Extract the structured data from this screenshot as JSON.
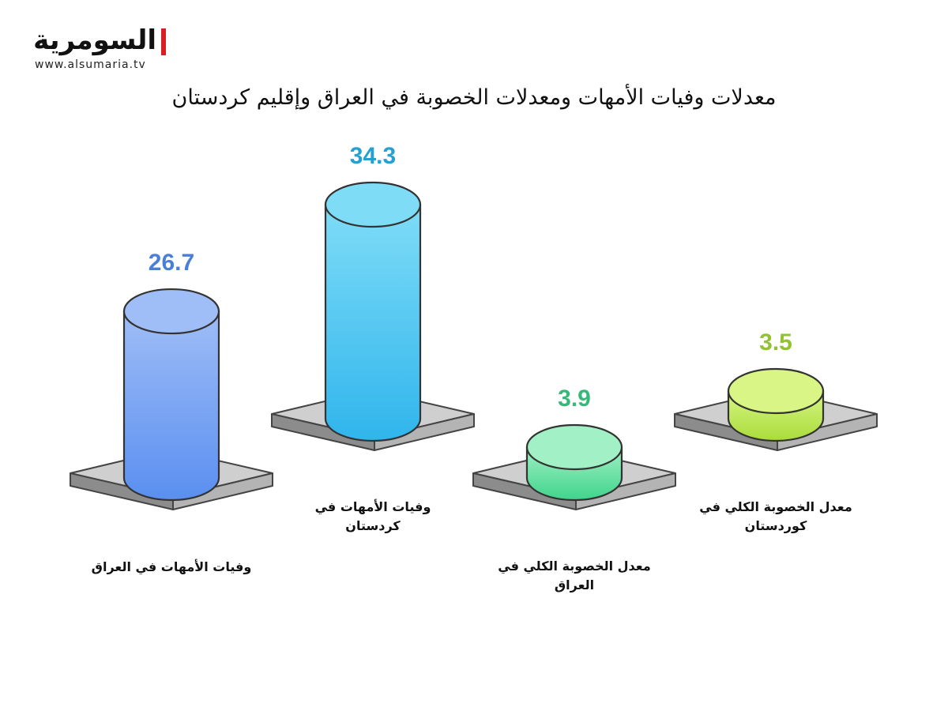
{
  "brand": {
    "name": "السومرية",
    "url": "www.alsumaria.tv",
    "accent": "#d81f26"
  },
  "chart_data": {
    "type": "bar",
    "title": "معدلات وفيات الأمهات ومعدلات الخصوبة في العراق وإقليم كردستان",
    "categories": [
      [
        "وفيات الأمهات في العراق"
      ],
      [
        "وفيات الأمهات في",
        "كردستان"
      ],
      [
        "معدل الخصوبة الكلي في",
        "العراق"
      ],
      [
        "معدل الخصوبة الكلي في",
        "كوردستان"
      ]
    ],
    "values": [
      26.7,
      34.3,
      3.9,
      3.5
    ],
    "colors": [
      {
        "top": "#9fbdf6",
        "body": "#5a8ff0",
        "text": "#4a7fd8"
      },
      {
        "top": "#7fdcf7",
        "body": "#30b5ec",
        "text": "#25a0d2"
      },
      {
        "top": "#a2f0c5",
        "body": "#3fd48b",
        "text": "#37b878"
      },
      {
        "top": "#d8f585",
        "body": "#a9dc3a",
        "text": "#93c134"
      }
    ]
  }
}
